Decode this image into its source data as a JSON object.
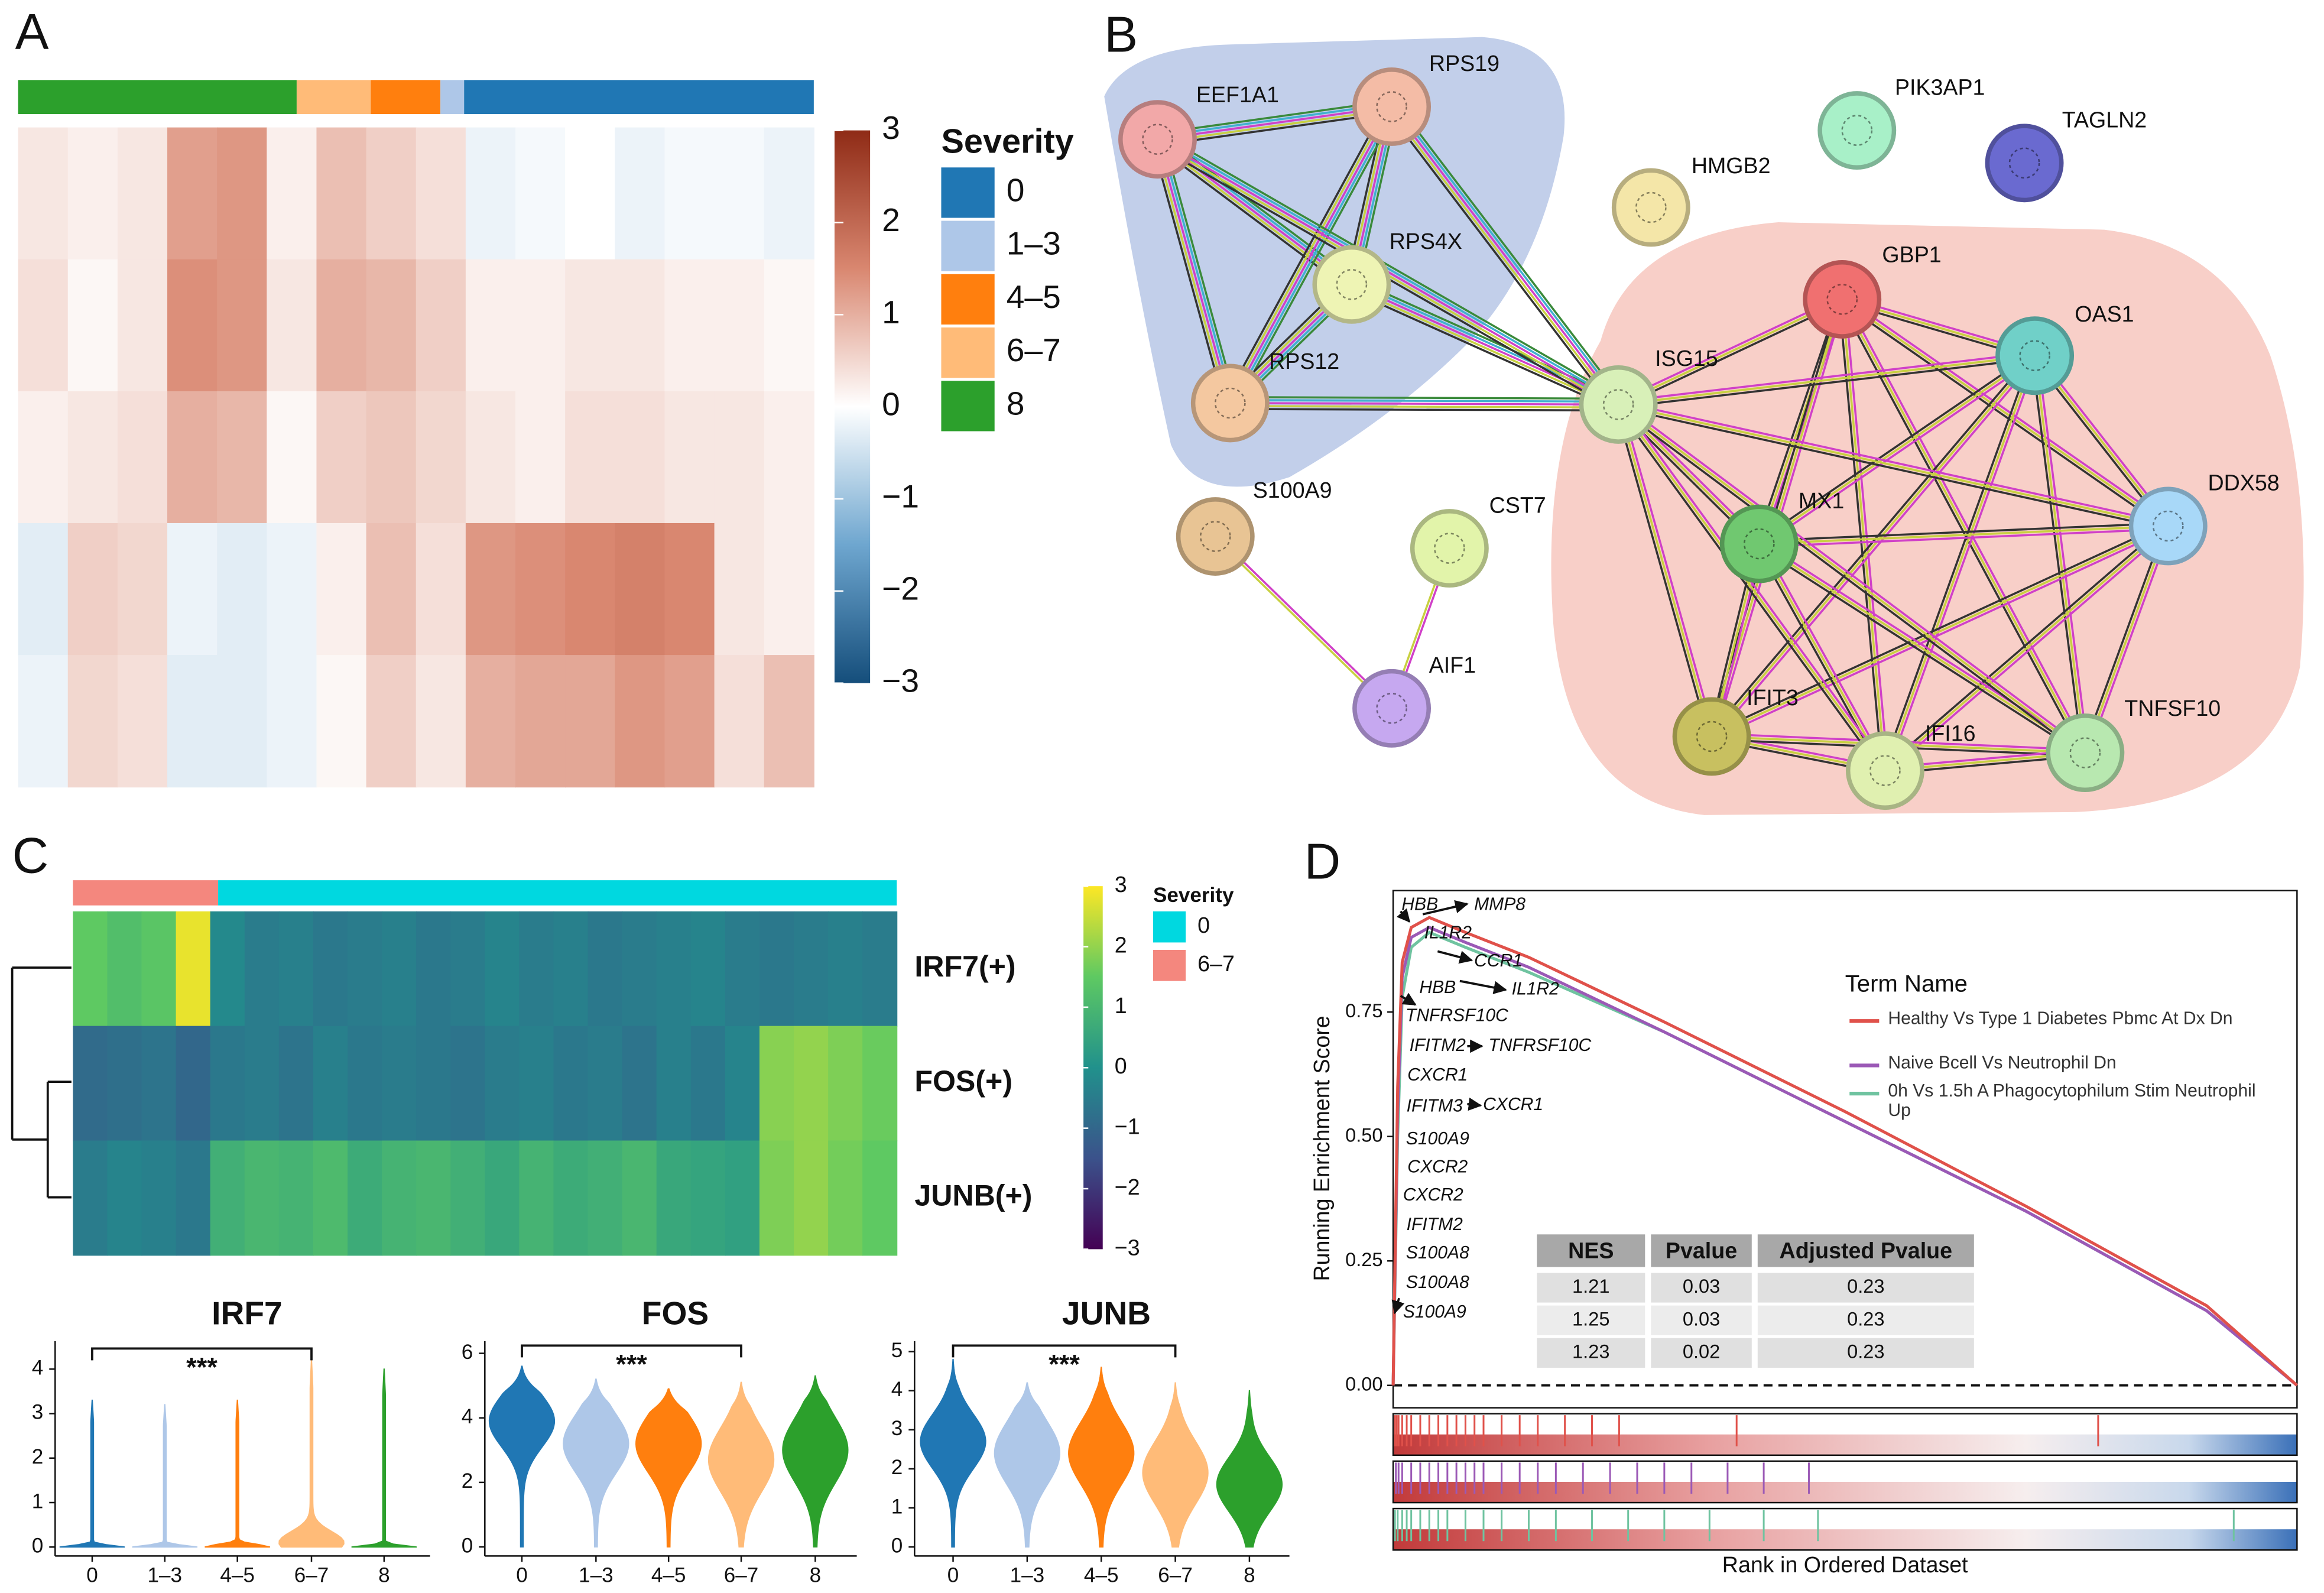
{
  "chart_data": [
    {
      "type": "heatmap",
      "panel_label": "A",
      "values": [
        [
          0.3,
          0.2,
          0.3,
          1.2,
          1.3,
          0.2,
          0.8,
          0.6,
          0.4,
          -0.2,
          -0.1,
          0,
          -0.2,
          -0.1,
          -0.1,
          -0.2
        ],
        [
          0.4,
          0.1,
          0.3,
          1.4,
          1.3,
          0.3,
          1.0,
          0.9,
          0.6,
          0.2,
          0.2,
          0.3,
          0.3,
          0.2,
          0.2,
          0.1
        ],
        [
          0.2,
          0.3,
          0.4,
          1.0,
          0.9,
          0.1,
          0.6,
          0.7,
          0.5,
          0.3,
          0.2,
          0.4,
          0.4,
          0.3,
          0.3,
          0.2
        ],
        [
          -0.3,
          0.6,
          0.5,
          -0.2,
          -0.3,
          -0.2,
          0.2,
          0.8,
          0.4,
          1.3,
          1.4,
          1.5,
          1.6,
          1.5,
          0.3,
          0.2
        ],
        [
          -0.2,
          0.5,
          0.4,
          -0.3,
          -0.3,
          -0.2,
          0.1,
          0.6,
          0.3,
          1.0,
          1.1,
          1.1,
          1.3,
          1.2,
          0.4,
          0.8
        ]
      ],
      "colorscale": [
        "#154e7b",
        "#6ea6cf",
        "#ffffff",
        "#d98770",
        "#8f2b16"
      ],
      "clim": [
        -3,
        3
      ],
      "cticks": [
        3,
        2,
        1,
        0,
        {
          "value": -1,
          "label": "−1"
        },
        {
          "value": -2,
          "label": "−2"
        },
        {
          "value": -3,
          "label": "−3"
        }
      ],
      "legend_title": "Severity",
      "legend": [
        {
          "name": "0",
          "color": "#2077b4"
        },
        {
          "name": "1–3",
          "color": "#aec7e8"
        },
        {
          "name": "4–5",
          "color": "#ff7f0e"
        },
        {
          "name": "6–7",
          "color": "#ffbb78"
        },
        {
          "name": "8",
          "color": "#2ca02c"
        }
      ]
    },
    {
      "type": "network",
      "panel_label": "B",
      "nodes": [
        {
          "label": "EEF1A1",
          "color": "#f2a8a8"
        },
        {
          "label": "RPS19",
          "color": "#f4bca6"
        },
        {
          "label": "RPS4X",
          "color": "#eef4b4"
        },
        {
          "label": "RPS12",
          "color": "#f4c8a0"
        },
        {
          "label": "ISG15",
          "color": "#d8f0b8"
        },
        {
          "label": "S100A9",
          "color": "#e8c494"
        },
        {
          "label": "CST7",
          "color": "#e2f4aa"
        },
        {
          "label": "AIF1",
          "color": "#c6a8f0"
        },
        {
          "label": "HMGB2",
          "color": "#f4e6a8"
        },
        {
          "label": "PIK3AP1",
          "color": "#a8f0c8"
        },
        {
          "label": "TAGLN2",
          "color": "#6a6ad0"
        },
        {
          "label": "GBP1",
          "color": "#f07070"
        },
        {
          "label": "OAS1",
          "color": "#70d0c8"
        },
        {
          "label": "DDX58",
          "color": "#a8d8f8"
        },
        {
          "label": "MX1",
          "color": "#70c870"
        },
        {
          "label": "IFIT3",
          "color": "#c8c060"
        },
        {
          "label": "IFI16",
          "color": "#e0f0b0"
        },
        {
          "label": "TNFSF10",
          "color": "#b8e8b0"
        }
      ]
    },
    {
      "type": "heatmap",
      "panel_label": "C",
      "rows": [
        "IRF7(+)",
        "FOS(+)",
        "JUNB(+)"
      ],
      "values": [
        [
          1.5,
          1.2,
          1.4,
          2.8,
          -0.2,
          -0.5,
          -0.4,
          -0.6,
          -0.5,
          -0.4,
          -0.6,
          -0.5,
          -0.3,
          -0.5,
          -0.4,
          -0.6,
          -0.5,
          -0.4,
          -0.3,
          -0.5,
          -0.6,
          -0.5,
          -0.4,
          -0.5
        ],
        [
          -0.9,
          -0.8,
          -0.7,
          -1.0,
          -0.6,
          -0.5,
          -0.7,
          -0.4,
          -0.6,
          -0.5,
          -0.6,
          -0.7,
          -0.5,
          -0.4,
          -0.6,
          -0.5,
          -0.7,
          -0.4,
          -0.6,
          -0.3,
          1.9,
          2.0,
          1.8,
          1.6
        ],
        [
          -0.5,
          -0.3,
          -0.4,
          -0.6,
          0.8,
          1.0,
          0.9,
          1.1,
          0.7,
          0.9,
          1.0,
          0.8,
          0.6,
          0.9,
          0.7,
          0.8,
          1.0,
          0.6,
          0.5,
          0.4,
          1.8,
          2.0,
          1.7,
          1.5
        ]
      ],
      "colorscale": [
        "#440154",
        "#3b528b",
        "#21918c",
        "#5ec962",
        "#fde725"
      ],
      "clim": [
        -3,
        3
      ],
      "cticks": [
        3,
        2,
        1,
        0,
        {
          "value": -1,
          "label": "−1"
        },
        {
          "value": -2,
          "label": "−2"
        },
        {
          "value": -3,
          "label": "−3"
        }
      ],
      "legend_title": "Severity",
      "legend": [
        {
          "name": "0",
          "color": "#00d8e0"
        },
        {
          "name": "6–7",
          "color": "#f4877e"
        }
      ]
    },
    {
      "type": "violin",
      "title": "IRF7",
      "categories": [
        "0",
        "1–3",
        "4–5",
        "6–7",
        "8"
      ],
      "colors": [
        "#2077b4",
        "#aec7e8",
        "#ff7f0e",
        "#ffbb78",
        "#2ca02c"
      ],
      "max": [
        3.3,
        3.2,
        3.3,
        4.2,
        4.0
      ],
      "mode": [
        0,
        0,
        0,
        0.1,
        0
      ],
      "spread": [
        0.04,
        0.04,
        0.06,
        0.25,
        0.04
      ],
      "ylim": [
        -0.2,
        4.63
      ],
      "yticks": [
        0,
        1,
        2,
        3,
        4
      ],
      "annotation": "***"
    },
    {
      "type": "violin",
      "title": "FOS",
      "categories": [
        "0",
        "1–3",
        "4–5",
        "6–7",
        "8"
      ],
      "colors": [
        "#2077b4",
        "#aec7e8",
        "#ff7f0e",
        "#ffbb78",
        "#2ca02c"
      ],
      "max": [
        5.6,
        5.2,
        4.9,
        5.1,
        5.3
      ],
      "mode": [
        3.9,
        3.2,
        3.2,
        2.7,
        3.0
      ],
      "spread": [
        0.8,
        0.9,
        0.9,
        1.0,
        1.0
      ],
      "ylim": [
        -0.28,
        6.38
      ],
      "yticks": [
        0,
        2,
        4,
        6
      ],
      "annotation": "***"
    },
    {
      "type": "violin",
      "title": "JUNB",
      "categories": [
        "0",
        "1–3",
        "4–5",
        "6–7",
        "8"
      ],
      "colors": [
        "#2077b4",
        "#aec7e8",
        "#ff7f0e",
        "#ffbb78",
        "#2ca02c"
      ],
      "max": [
        4.8,
        4.2,
        4.6,
        4.2,
        4.0
      ],
      "mode": [
        2.7,
        2.4,
        2.4,
        1.9,
        1.6
      ],
      "spread": [
        0.7,
        0.8,
        0.8,
        0.8,
        0.7
      ],
      "ylim": [
        -0.23,
        5.27
      ],
      "yticks": [
        0,
        1,
        2,
        3,
        4,
        5
      ],
      "annotation": "***"
    },
    {
      "type": "gsea",
      "panel_label": "D",
      "ylabel": "Running Enrichment Score",
      "xlabel": "Rank in Ordered Dataset",
      "ylim": [
        -0.045,
        0.994
      ],
      "yticks": [
        {
          "value": 0,
          "label": "0.00"
        },
        0.25,
        {
          "value": 0.5,
          "label": "0.50"
        },
        0.75
      ],
      "x": [
        0,
        0.005,
        0.01,
        0.02,
        0.04,
        0.08,
        0.15,
        0.3,
        0.5,
        0.7,
        0.9,
        1
      ],
      "legend_title": "Term Name",
      "series": [
        {
          "name": "Healthy Vs Type 1 Diabetes Pbmc At Dx Dn",
          "color": "#e0514a",
          "values": [
            0,
            0.6,
            0.85,
            0.92,
            0.94,
            0.91,
            0.86,
            0.73,
            0.55,
            0.36,
            0.16,
            0
          ],
          "hits": [
            0.002,
            0.004,
            0.006,
            0.01,
            0.015,
            0.02,
            0.03,
            0.04,
            0.05,
            0.06,
            0.07,
            0.08,
            0.09,
            0.1,
            0.12,
            0.14,
            0.16,
            0.19,
            0.22,
            0.25,
            0.38,
            0.78
          ]
        },
        {
          "name": "Naive Bcell Vs Neutrophil Dn",
          "color": "#9b59b6",
          "values": [
            0,
            0.55,
            0.82,
            0.9,
            0.92,
            0.89,
            0.84,
            0.71,
            0.53,
            0.35,
            0.15,
            0
          ],
          "hits": [
            0.003,
            0.006,
            0.01,
            0.02,
            0.03,
            0.04,
            0.05,
            0.06,
            0.07,
            0.08,
            0.09,
            0.1,
            0.12,
            0.14,
            0.16,
            0.18,
            0.21,
            0.24,
            0.27,
            0.3,
            0.33,
            0.37,
            0.41,
            0.46
          ]
        },
        {
          "name": "0h Vs 1.5h A Phagocytophilum Stim Neutrophil Up",
          "color": "#6fc3a0",
          "values": [
            0,
            0.5,
            0.78,
            0.88,
            0.91,
            0.88,
            0.83,
            0.71,
            0.53,
            0.35,
            0.15,
            0
          ],
          "hits": [
            0.002,
            0.005,
            0.01,
            0.015,
            0.02,
            0.03,
            0.04,
            0.05,
            0.06,
            0.08,
            0.1,
            0.12,
            0.15,
            0.18,
            0.22,
            0.26,
            0.3,
            0.35,
            0.41,
            0.47,
            0.93
          ]
        }
      ],
      "genes": [
        "HBB",
        "MMP8",
        "IL1R2",
        "CCR1",
        "HBB",
        "IL1R2",
        "TNFRSF10C",
        "IFITM2",
        "TNFRSF10C",
        "CXCR1",
        "IFITM3",
        "CXCR1",
        "S100A9",
        "CXCR2",
        "CXCR2",
        "IFITM2",
        "S100A8",
        "S100A8",
        "S100A9"
      ],
      "table": {
        "header": [
          "NES",
          "Pvalue",
          "Adjusted Pvalue"
        ],
        "rows": [
          [
            1.21,
            0.03,
            0.23
          ],
          [
            1.25,
            0.03,
            0.23
          ],
          [
            1.23,
            0.02,
            0.23
          ]
        ]
      }
    }
  ]
}
